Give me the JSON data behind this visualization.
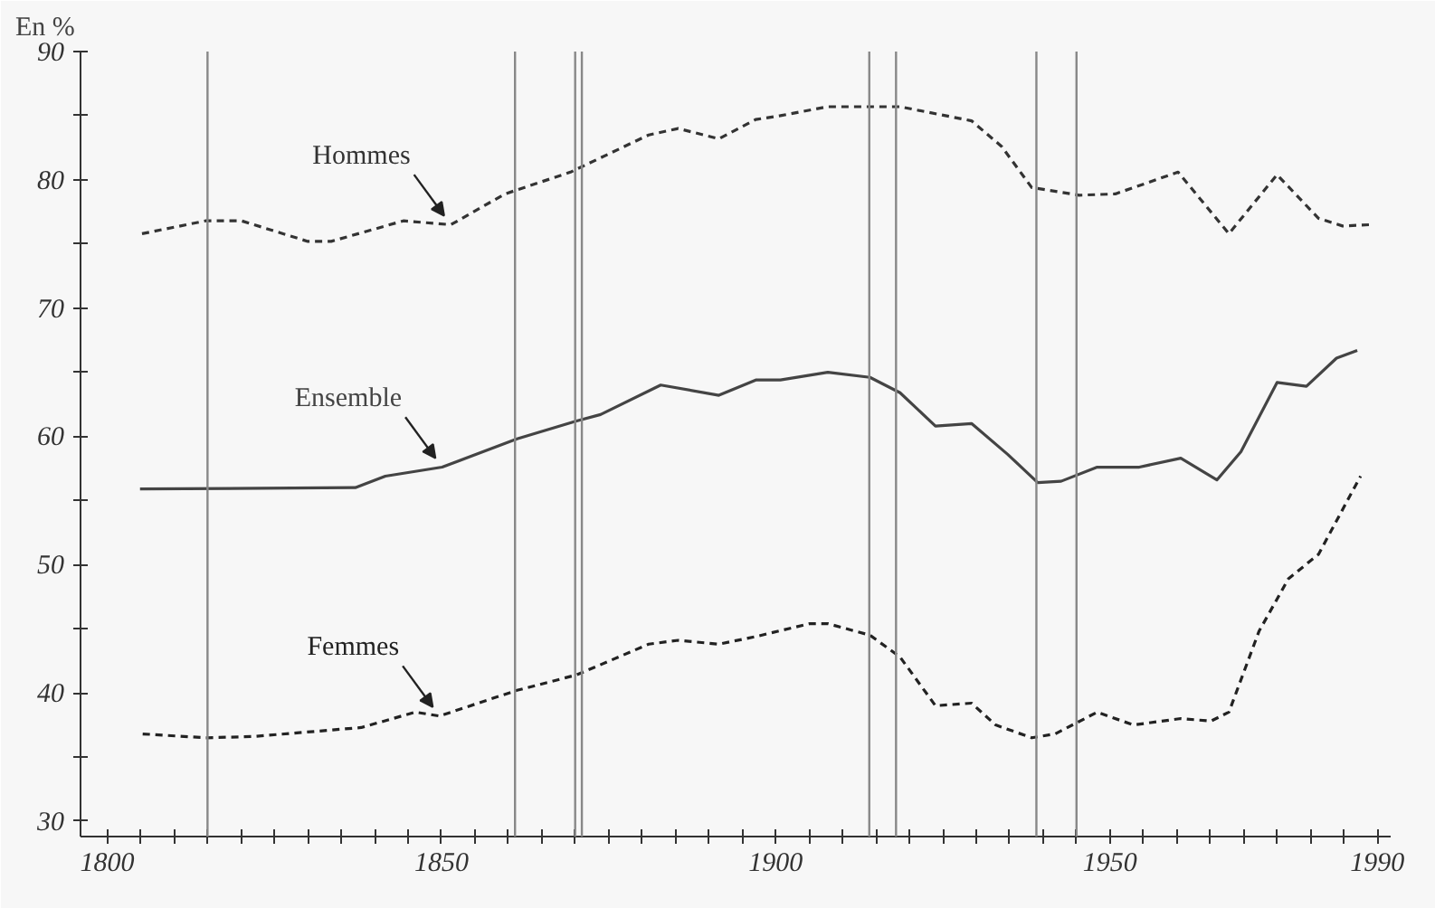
{
  "chart_data": {
    "type": "line",
    "ylabel": "En %",
    "xlim": [
      1796,
      1992
    ],
    "ylim": [
      28.8,
      90
    ],
    "xticks": [
      1800,
      {
        "value": 1805,
        "label": null
      },
      {
        "value": 1810,
        "label": null
      },
      {
        "value": 1815,
        "label": null
      },
      {
        "value": 1820,
        "label": null
      },
      {
        "value": 1825,
        "label": null
      },
      {
        "value": 1830,
        "label": null
      },
      {
        "value": 1835,
        "label": null
      },
      {
        "value": 1840,
        "label": null
      },
      {
        "value": 1845,
        "label": null
      },
      1850,
      {
        "value": 1855,
        "label": null
      },
      {
        "value": 1860,
        "label": null
      },
      {
        "value": 1865,
        "label": null
      },
      {
        "value": 1870,
        "label": null
      },
      {
        "value": 1875,
        "label": null
      },
      {
        "value": 1880,
        "label": null
      },
      {
        "value": 1885,
        "label": null
      },
      {
        "value": 1890,
        "label": null
      },
      {
        "value": 1895,
        "label": null
      },
      1900,
      {
        "value": 1905,
        "label": null
      },
      {
        "value": 1910,
        "label": null
      },
      {
        "value": 1915,
        "label": null
      },
      {
        "value": 1920,
        "label": null
      },
      {
        "value": 1925,
        "label": null
      },
      {
        "value": 1930,
        "label": null
      },
      {
        "value": 1935,
        "label": null
      },
      {
        "value": 1940,
        "label": null
      },
      {
        "value": 1945,
        "label": null
      },
      1950,
      {
        "value": 1955,
        "label": null
      },
      {
        "value": 1960,
        "label": null
      },
      {
        "value": 1965,
        "label": null
      },
      {
        "value": 1970,
        "label": null
      },
      {
        "value": 1975,
        "label": null
      },
      {
        "value": 1980,
        "label": null
      },
      {
        "value": 1985,
        "label": null
      },
      1990
    ],
    "yticks": [
      30,
      {
        "value": 35,
        "label": null
      },
      40,
      {
        "value": 45,
        "label": null
      },
      50,
      {
        "value": 55,
        "label": null
      },
      60,
      {
        "value": 65,
        "label": null
      },
      70,
      {
        "value": 75,
        "label": null
      },
      80,
      {
        "value": 85,
        "label": null
      },
      90
    ],
    "grid": false,
    "marker": "none",
    "series": [
      {
        "name": "Hommes",
        "color": "#333333",
        "line_style": "dashed",
        "x": [
          1805.2,
          1814.7,
          1820.1,
          1830,
          1833.5,
          1844.3,
          1851.4,
          1859.5,
          1869.3,
          1881,
          1885.4,
          1891.5,
          1897,
          1900.7,
          1907.8,
          1914.1,
          1918.6,
          1929.3,
          1933.8,
          1938.3,
          1945.4,
          1950.8,
          1960.2,
          1967.8,
          1975,
          1981.2,
          1984.8,
          1988.8
        ],
        "values": [
          75.8,
          76.8,
          76.8,
          75.2,
          75.2,
          76.8,
          76.5,
          78.9,
          80.6,
          83.5,
          84,
          83.2,
          84.7,
          85,
          85.7,
          85.7,
          85.7,
          84.6,
          82.6,
          79.4,
          78.8,
          78.9,
          80.6,
          75.8,
          80.4,
          77,
          76.4,
          76.5
        ]
      },
      {
        "name": "Ensemble",
        "color": "#444444",
        "line_style": "solid",
        "x": [
          1804.9,
          1837.1,
          1841.6,
          1850.1,
          1861.3,
          1870.2,
          1873.8,
          1882.8,
          1891.5,
          1897.1,
          1900.7,
          1907.8,
          1914.1,
          1918.6,
          1923.9,
          1929.3,
          1934.7,
          1939.2,
          1942.7,
          1948.1,
          1954.4,
          1960.6,
          1966,
          1969.6,
          1975,
          1979.4,
          1983.9,
          1987
        ],
        "values": [
          55.9,
          56,
          56.9,
          57.6,
          59.8,
          61.2,
          61.7,
          64,
          63.2,
          64.4,
          64.4,
          65,
          64.6,
          63.4,
          60.8,
          61,
          58.6,
          56.4,
          56.5,
          57.6,
          57.6,
          58.3,
          56.6,
          58.8,
          64.2,
          63.9,
          66.1,
          66.7
        ]
      },
      {
        "name": "Femmes",
        "color": "#222222",
        "line_style": "dashed",
        "x": [
          1805.3,
          1814.7,
          1821.9,
          1838,
          1846.1,
          1849.7,
          1861.3,
          1870.2,
          1881,
          1885.4,
          1891.5,
          1897.1,
          1905.1,
          1907.8,
          1914.1,
          1918.6,
          1923.9,
          1929.3,
          1932.9,
          1938.3,
          1941.8,
          1948.1,
          1953.5,
          1960.6,
          1965.1,
          1967.8,
          1972.3,
          1976.7,
          1981.2,
          1987.5
        ],
        "values": [
          36.8,
          36.5,
          36.6,
          37.3,
          38.5,
          38.2,
          40.2,
          41.4,
          43.8,
          44.1,
          43.8,
          44.4,
          45.4,
          45.4,
          44.5,
          42.8,
          39,
          39.2,
          37.5,
          36.5,
          36.8,
          38.5,
          37.5,
          38,
          37.8,
          38.5,
          44.8,
          48.9,
          50.8,
          56.9
        ]
      }
    ],
    "ref_lines": [
      {
        "axis": "x",
        "value": 1815,
        "color": "#888888"
      },
      {
        "axis": "x",
        "value": 1861,
        "color": "#888888"
      },
      {
        "axis": "x",
        "value": 1870,
        "color": "#888888"
      },
      {
        "axis": "x",
        "value": 1871,
        "color": "#888888"
      },
      {
        "axis": "x",
        "value": 1914,
        "color": "#888888"
      },
      {
        "axis": "x",
        "value": 1918,
        "color": "#888888"
      },
      {
        "axis": "x",
        "value": 1939,
        "color": "#888888"
      },
      {
        "axis": "x",
        "value": 1945,
        "color": "#888888"
      }
    ]
  }
}
